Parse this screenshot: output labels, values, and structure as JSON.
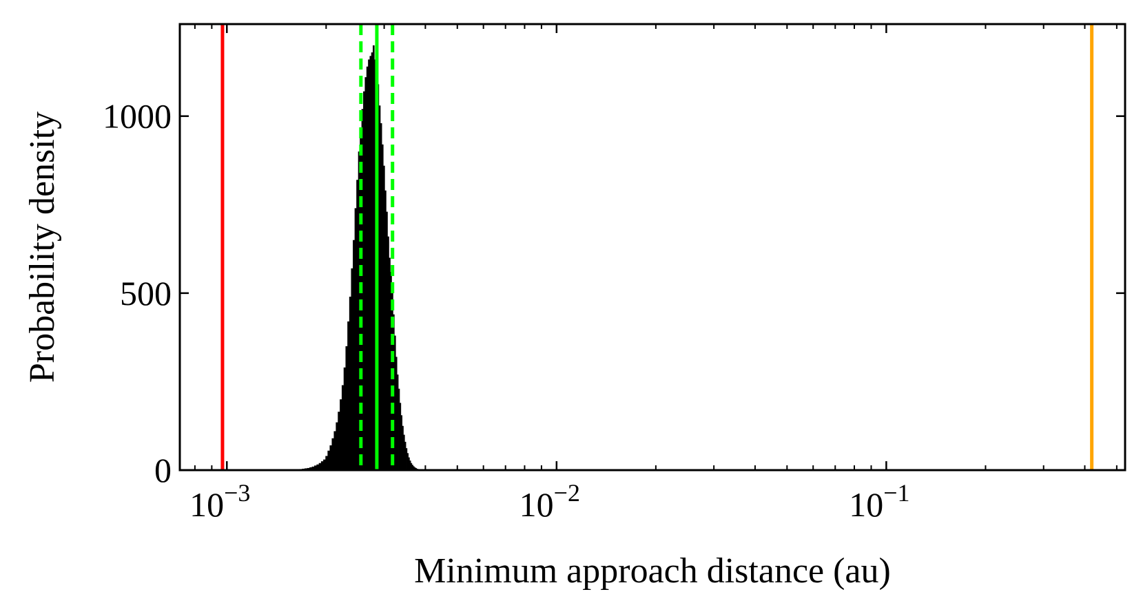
{
  "chart_data": {
    "type": "bar",
    "subtype": "histogram",
    "title": "",
    "xlabel": "Minimum approach distance (au)",
    "ylabel": "Probability density",
    "x_scale": "log",
    "xlim": [
      0.00072,
      0.53
    ],
    "ylim": [
      0,
      1260
    ],
    "grid": false,
    "legend": "none",
    "x_ticks": [
      {
        "value": 0.001,
        "base": "10",
        "exponent": "−3"
      },
      {
        "value": 0.01,
        "base": "10",
        "exponent": "−2"
      },
      {
        "value": 0.1,
        "base": "10",
        "exponent": "−1"
      }
    ],
    "y_ticks": [
      {
        "value": 0,
        "label": "0"
      },
      {
        "value": 500,
        "label": "500"
      },
      {
        "value": 1000,
        "label": "1000"
      }
    ],
    "histogram": {
      "color": "#000000",
      "bin_edges": [
        0.0016,
        0.00163,
        0.00166,
        0.00169,
        0.00172,
        0.00175,
        0.00178,
        0.00181,
        0.00184,
        0.00187,
        0.0019,
        0.00193,
        0.00196,
        0.00199,
        0.00202,
        0.00205,
        0.00208,
        0.00211,
        0.00214,
        0.00217,
        0.0022,
        0.00223,
        0.00226,
        0.00229,
        0.00232,
        0.00235,
        0.00238,
        0.00241,
        0.00244,
        0.00247,
        0.0025,
        0.00253,
        0.00256,
        0.00259,
        0.00262,
        0.00265,
        0.00268,
        0.00271,
        0.00274,
        0.00277,
        0.0028,
        0.00283,
        0.00286,
        0.00289,
        0.00292,
        0.00295,
        0.00298,
        0.00301,
        0.00304,
        0.00307,
        0.0031,
        0.00313,
        0.00316,
        0.00319,
        0.00322,
        0.00325,
        0.00328,
        0.00331,
        0.00334,
        0.00337,
        0.0034,
        0.00343,
        0.00346,
        0.00349,
        0.00352,
        0.00355,
        0.00358,
        0.00361,
        0.00364,
        0.00367,
        0.0037,
        0.00373,
        0.00376,
        0.00379,
        0.00382,
        0.00385,
        0.00388,
        0.00391,
        0.00394,
        0.00397,
        0.004,
        0.00403,
        0.00406,
        0.00409,
        0.00412,
        0.00415,
        0.00418,
        0.00421
      ],
      "values": [
        1,
        2,
        3,
        4,
        5,
        6,
        8,
        10,
        13,
        16,
        20,
        25,
        30,
        40,
        55,
        70,
        90,
        110,
        135,
        165,
        200,
        240,
        290,
        350,
        420,
        490,
        570,
        650,
        740,
        820,
        900,
        960,
        1020,
        1070,
        1110,
        1140,
        1160,
        1170,
        1180,
        1200,
        1160,
        1130,
        1090,
        1030,
        980,
        920,
        860,
        790,
        730,
        660,
        600,
        560,
        500,
        440,
        380,
        320,
        270,
        230,
        190,
        155,
        125,
        100,
        80,
        62,
        48,
        36,
        27,
        20,
        15,
        11,
        8,
        6,
        4,
        3,
        2,
        2,
        1,
        1,
        1,
        1,
        0,
        0,
        0,
        0,
        0,
        0,
        0
      ]
    },
    "vertical_lines": [
      {
        "name": "",
        "x": 0.00097,
        "color": "#ff0000",
        "style": "solid"
      },
      {
        "name": "",
        "x": 0.00255,
        "color": "#00ff00",
        "style": "dashed"
      },
      {
        "name": "",
        "x": 0.00285,
        "color": "#00ff00",
        "style": "solid"
      },
      {
        "name": "",
        "x": 0.00318,
        "color": "#00ff00",
        "style": "dashed"
      },
      {
        "name": "",
        "x": 0.42,
        "color": "#ffa500",
        "style": "solid"
      }
    ]
  }
}
